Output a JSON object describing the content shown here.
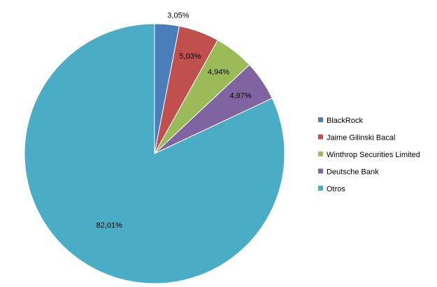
{
  "chart_data": {
    "type": "pie",
    "title": "",
    "legend_position": "right",
    "slices": [
      {
        "name": "BlackRock",
        "value": 3.05,
        "label": "3,05%",
        "color": "#4a7ebb"
      },
      {
        "name": "Jaime Gilinski Bacal",
        "value": 5.03,
        "label": "5,03%",
        "color": "#c0504d"
      },
      {
        "name": "Winthrop Securities Limited",
        "value": 4.94,
        "label": "4,94%",
        "color": "#9bbb59"
      },
      {
        "name": "Deutsche Bank",
        "value": 4.97,
        "label": "4,97%",
        "color": "#8064a2"
      },
      {
        "name": "Otros",
        "value": 82.01,
        "label": "82,01%",
        "color": "#4bacc6"
      }
    ]
  }
}
